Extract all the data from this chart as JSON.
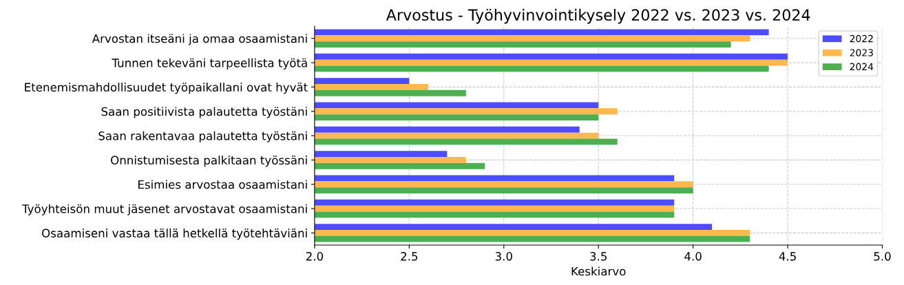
{
  "chart_data": {
    "type": "bar",
    "orientation": "horizontal",
    "title": "Arvostus - Työhyvinvointikysely 2022 vs. 2023 vs. 2024",
    "xlabel": "Keskiarvo",
    "categories": [
      "Arvostan itseäni ja omaa osaamistani",
      "Tunnen tekeväni tarpeellista työtä",
      "Etenemismahdollisuudet työpaikallani ovat hyvät",
      "Saan positiivista palautetta työstäni",
      "Saan rakentavaa palautetta työstäni",
      "Onnistumisesta palkitaan työssäni",
      "Esimies arvostaa osaamistani",
      "Työyhteisön muut jäsenet arvostavat osaamistani",
      "Osaamiseni vastaa tällä hetkellä työtehtäviäni"
    ],
    "series": [
      {
        "name": "2022",
        "color": "#4d4dff",
        "values": [
          4.4,
          4.5,
          2.5,
          3.5,
          3.4,
          2.7,
          3.9,
          3.9,
          4.1
        ]
      },
      {
        "name": "2023",
        "color": "#ffb84d",
        "values": [
          4.3,
          4.5,
          2.6,
          3.6,
          3.5,
          2.8,
          4.0,
          3.9,
          4.3
        ]
      },
      {
        "name": "2024",
        "color": "#4caf50",
        "values": [
          4.2,
          4.4,
          2.8,
          3.5,
          3.6,
          2.9,
          4.0,
          3.9,
          4.3
        ]
      }
    ],
    "xlim": [
      2.0,
      5.0
    ],
    "xticks": [
      {
        "value": 2.0,
        "label": "2.0"
      },
      {
        "value": 2.5,
        "label": "2.5"
      },
      {
        "value": 3.0,
        "label": "3.0"
      },
      {
        "value": 3.5,
        "label": "3.5"
      },
      {
        "value": 4.0,
        "label": "4.0"
      },
      {
        "value": 4.5,
        "label": "4.5"
      },
      {
        "value": 5.0,
        "label": "5.0"
      }
    ],
    "grid": true,
    "legend": "top right"
  }
}
